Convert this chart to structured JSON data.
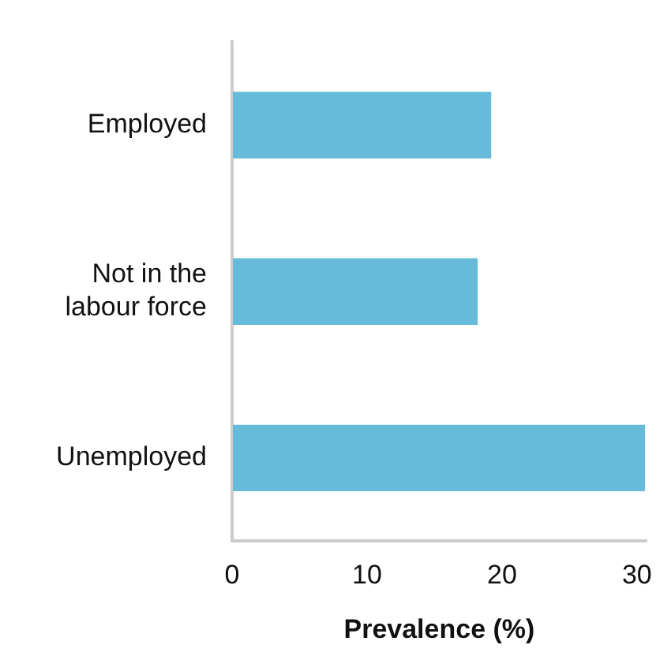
{
  "chart_data": {
    "type": "bar",
    "orientation": "horizontal",
    "xlabel": "Prevalence (%)",
    "categories": [
      "Employed",
      "Not in the labour force",
      "Unemployed"
    ],
    "values": [
      19.2,
      18.2,
      30.6
    ],
    "color": "#66bbdb",
    "xlim": [
      0,
      30.7
    ],
    "xticks": [
      0,
      10,
      20,
      30
    ],
    "grid": false,
    "legend": false
  }
}
